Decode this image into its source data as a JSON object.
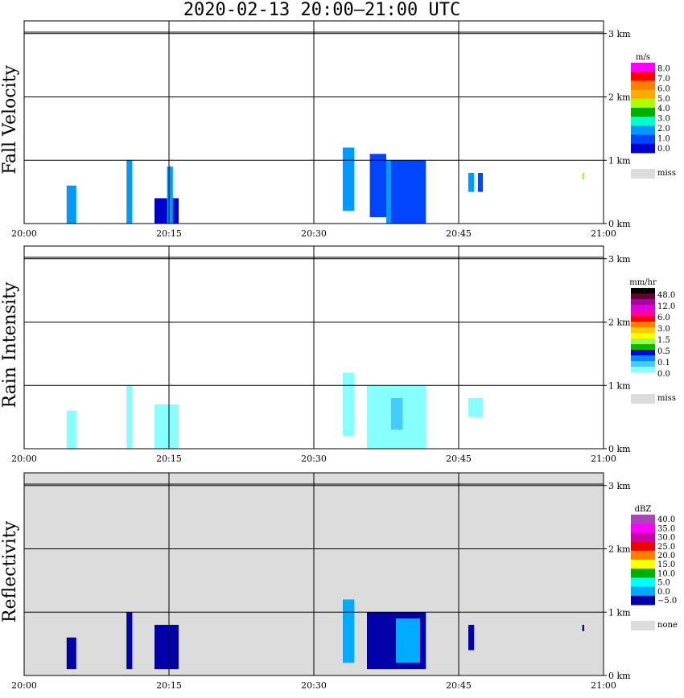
{
  "title": "2020-02-13   20:00–21:00 UTC",
  "colors": {
    "grid": "#000000",
    "missing": "#dcdcdc",
    "background": "#ffffff"
  },
  "chart_data": [
    {
      "type": "heatmap",
      "name": "Fall Velocity",
      "ylabel": "Fall Velocity",
      "x_ticks": [
        "20:00",
        "20:15",
        "20:30",
        "20:45",
        "21:00"
      ],
      "y_ticks": [
        "0 km",
        "1 km",
        "2 km",
        "3 km"
      ],
      "xlim": [
        "20:00",
        "21:00"
      ],
      "ylim_km": [
        0,
        3.2
      ],
      "background": "#ffffff",
      "colorbar": {
        "unit": "m/s",
        "labels": [
          "8.0",
          "7.0",
          "6.0",
          "5.0",
          "4.0",
          "3.0",
          "2.0",
          "1.0",
          "0.0"
        ],
        "colors": [
          "#ff00ff",
          "#ff0000",
          "#ff7f00",
          "#ffaa00",
          "#aaff00",
          "#00b000",
          "#00ffcc",
          "#0099ff",
          "#0044ff",
          "#0000cc"
        ],
        "miss_label": "miss",
        "miss_color": "#dcdcdc"
      },
      "echoes": [
        {
          "t0": 4.4,
          "t1": 5.4,
          "z0": 0.0,
          "z1": 0.6,
          "color": "#0099ff"
        },
        {
          "t0": 10.6,
          "t1": 11.2,
          "z0": 0.0,
          "z1": 1.0,
          "color": "#0099ff"
        },
        {
          "t0": 13.5,
          "t1": 16.0,
          "z0": 0.0,
          "z1": 0.4,
          "color": "#0000cc"
        },
        {
          "t0": 14.8,
          "t1": 15.4,
          "z0": 0.0,
          "z1": 0.9,
          "color": "#0099ff"
        },
        {
          "t0": 33.0,
          "t1": 34.2,
          "z0": 0.2,
          "z1": 1.2,
          "color": "#0099ff"
        },
        {
          "t0": 35.8,
          "t1": 37.5,
          "z0": 0.1,
          "z1": 1.1,
          "color": "#0044ff"
        },
        {
          "t0": 37.5,
          "t1": 40.5,
          "z0": 0.0,
          "z1": 1.0,
          "color": "#0099ff"
        },
        {
          "t0": 38.0,
          "t1": 41.6,
          "z0": 0.0,
          "z1": 1.0,
          "color": "#0044ff"
        },
        {
          "t0": 46.0,
          "t1": 46.6,
          "z0": 0.5,
          "z1": 0.8,
          "color": "#0099ff"
        },
        {
          "t0": 47.0,
          "t1": 47.5,
          "z0": 0.5,
          "z1": 0.8,
          "color": "#0044ff"
        },
        {
          "t0": 57.8,
          "t1": 58.0,
          "z0": 0.7,
          "z1": 0.8,
          "color": "#aaff00"
        }
      ]
    },
    {
      "type": "heatmap",
      "name": "Rain Intensity",
      "ylabel": "Rain Intensity",
      "x_ticks": [
        "20:00",
        "20:15",
        "20:30",
        "20:45",
        "21:00"
      ],
      "y_ticks": [
        "0 km",
        "1 km",
        "2 km",
        "3 km"
      ],
      "xlim": [
        "20:00",
        "21:00"
      ],
      "ylim_km": [
        0,
        3.2
      ],
      "background": "#ffffff",
      "colorbar": {
        "unit": "mm/hr",
        "labels": [
          "48.0",
          "12.0",
          "6.0",
          "3.0",
          "1.5",
          "0.5",
          "0.1",
          "0.0"
        ],
        "colors": [
          "#000000",
          "#660033",
          "#aa00aa",
          "#dd00dd",
          "#ff0099",
          "#ff0000",
          "#ff7f00",
          "#ffcc00",
          "#ffff00",
          "#99ff44",
          "#00bb00",
          "#0000dd",
          "#0088ff",
          "#44ccff",
          "#88ffff",
          "#ffffff"
        ],
        "miss_label": "miss",
        "miss_color": "#dcdcdc"
      },
      "echoes": [
        {
          "t0": 4.4,
          "t1": 5.4,
          "z0": 0.0,
          "z1": 0.6,
          "color": "#88ffff"
        },
        {
          "t0": 10.6,
          "t1": 11.2,
          "z0": 0.0,
          "z1": 1.0,
          "color": "#88ffff"
        },
        {
          "t0": 13.5,
          "t1": 16.0,
          "z0": 0.0,
          "z1": 0.7,
          "color": "#88ffff"
        },
        {
          "t0": 33.0,
          "t1": 34.2,
          "z0": 0.2,
          "z1": 1.2,
          "color": "#88ffff"
        },
        {
          "t0": 35.5,
          "t1": 41.6,
          "z0": 0.0,
          "z1": 1.0,
          "color": "#88ffff"
        },
        {
          "t0": 38.0,
          "t1": 39.2,
          "z0": 0.3,
          "z1": 0.8,
          "color": "#44ccff"
        },
        {
          "t0": 46.0,
          "t1": 47.5,
          "z0": 0.5,
          "z1": 0.8,
          "color": "#88ffff"
        }
      ]
    },
    {
      "type": "heatmap",
      "name": "Reflectivity",
      "ylabel": "Reflectivity",
      "x_ticks": [
        "20:00",
        "20:15",
        "20:30",
        "20:45",
        "21:00"
      ],
      "y_ticks": [
        "0 km",
        "1 km",
        "2 km",
        "3 km"
      ],
      "xlim": [
        "20:00",
        "21:00"
      ],
      "ylim_km": [
        0,
        3.2
      ],
      "background": "#dcdcdc",
      "colorbar": {
        "unit": "dBZ",
        "labels": [
          "40.0",
          "35.0",
          "30.0",
          "25.0",
          "20.0",
          "15.0",
          "10.0",
          "5.0",
          "0.0",
          "−5.0"
        ],
        "colors": [
          "#aa44bb",
          "#ff00ff",
          "#cc00aa",
          "#ee0000",
          "#ff7f00",
          "#ffff00",
          "#00b000",
          "#00ffff",
          "#00aaff",
          "#0000aa"
        ],
        "miss_label": "none",
        "miss_color": "#dcdcdc"
      },
      "echoes": [
        {
          "t0": 4.4,
          "t1": 5.4,
          "z0": 0.1,
          "z1": 0.6,
          "color": "#0000aa"
        },
        {
          "t0": 10.6,
          "t1": 11.2,
          "z0": 0.1,
          "z1": 1.0,
          "color": "#0000aa"
        },
        {
          "t0": 13.5,
          "t1": 16.0,
          "z0": 0.1,
          "z1": 0.8,
          "color": "#0000aa"
        },
        {
          "t0": 33.0,
          "t1": 34.2,
          "z0": 0.2,
          "z1": 1.2,
          "color": "#00aaff"
        },
        {
          "t0": 35.5,
          "t1": 41.6,
          "z0": 0.1,
          "z1": 1.0,
          "color": "#0000aa"
        },
        {
          "t0": 38.5,
          "t1": 41.0,
          "z0": 0.2,
          "z1": 0.9,
          "color": "#00aaff"
        },
        {
          "t0": 46.0,
          "t1": 46.6,
          "z0": 0.4,
          "z1": 0.8,
          "color": "#0000aa"
        },
        {
          "t0": 57.8,
          "t1": 58.0,
          "z0": 0.7,
          "z1": 0.8,
          "color": "#0000aa"
        }
      ]
    }
  ]
}
